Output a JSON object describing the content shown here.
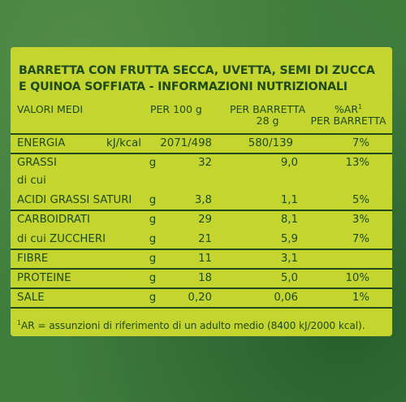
{
  "title": {
    "line1": "BARRETTA CON FRUTTA SECCA, UVETTA, SEMI DI ZUCCA",
    "line2": "E QUINOA SOFFIATA - INFORMAZIONI NUTRIZIONALI"
  },
  "header": {
    "label": "VALORI MEDI",
    "per100": "PER 100 g",
    "perbar_line1": "PER BARRETTA",
    "perbar_line2": "28 g",
    "ar_line1": "%AR",
    "ar_sup": "1",
    "ar_line2": "PER BARRETTA"
  },
  "rows": {
    "energia": {
      "name": "ENERGIA",
      "unit": "kJ/kcal",
      "v100": "2071/498",
      "vbar": "580/139",
      "ar": "7%"
    },
    "grassi": {
      "name": "GRASSI",
      "unit": "g",
      "v100": "32",
      "vbar": "9,0",
      "ar": "13%"
    },
    "dicui": {
      "name": "di cui"
    },
    "saturi": {
      "name": "ACIDI GRASSI SATURI",
      "unit": "g",
      "v100": "3,8",
      "vbar": "1,1",
      "ar": "5%"
    },
    "carbo": {
      "name": "CARBOIDRATI",
      "unit": "g",
      "v100": "29",
      "vbar": "8,1",
      "ar": "3%"
    },
    "zuccheri": {
      "name": "di cui ZUCCHERI",
      "unit": "g",
      "v100": "21",
      "vbar": "5,9",
      "ar": "7%"
    },
    "fibre": {
      "name": "FIBRE",
      "unit": "g",
      "v100": "11",
      "vbar": "3,1",
      "ar": ""
    },
    "proteine": {
      "name": "PROTEINE",
      "unit": "g",
      "v100": "18",
      "vbar": "5,0",
      "ar": "10%"
    },
    "sale": {
      "name": "SALE",
      "unit": "g",
      "v100": "0,20",
      "vbar": "0,06",
      "ar": "1%"
    }
  },
  "footnote": {
    "sup": "1",
    "text": "AR = assunzioni di riferimento di un adulto medio (8400 kJ/2000 kcal)."
  }
}
